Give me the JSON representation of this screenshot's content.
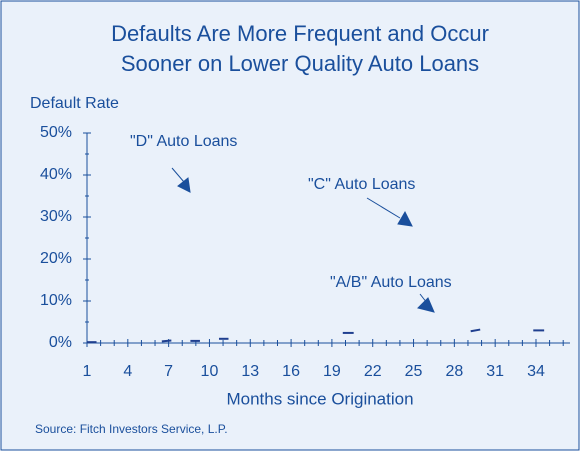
{
  "chart_data": {
    "type": "line",
    "title": [
      "Defaults Are More Frequent and Occur",
      "Sooner on Lower Quality Auto Loans"
    ],
    "y_label": "Default Rate",
    "x_label": "Months since Origination",
    "source": "Source:  Fitch Investors Service, L.P.",
    "annotations": [
      "\"D\" Auto Loans",
      "\"C\" Auto Loans",
      "\"A/B\" Auto Loans"
    ],
    "x": [
      1,
      1.7,
      4,
      6.5,
      7.2,
      8,
      8.6,
      9.3,
      10,
      10.7,
      11.4,
      15,
      19.8,
      20.6,
      25,
      29.2,
      29.9,
      32,
      33.8,
      34.6
    ],
    "series": [
      {
        "color": "#1f3f8f",
        "values": [
          0.2,
          0.2,
          null,
          0.4,
          0.6,
          null,
          0.5,
          0.5,
          null,
          1,
          1,
          null,
          2.4,
          2.4,
          null,
          2.8,
          3.2,
          null,
          3,
          3
        ]
      }
    ],
    "xlim": [
      1,
      36.5
    ],
    "xticks": [
      1,
      4,
      7,
      10,
      13,
      16,
      19,
      22,
      25,
      28,
      31,
      34
    ],
    "xticks_minor": [
      2,
      3,
      5,
      6,
      8,
      9,
      11,
      12,
      14,
      15,
      17,
      18,
      20,
      21,
      23,
      24,
      26,
      27,
      29,
      30,
      32,
      33,
      35,
      36
    ],
    "ylim": [
      0,
      50
    ],
    "yticks": [
      {
        "value": 0,
        "label": "0%"
      },
      {
        "value": 10,
        "label": "10%"
      },
      {
        "value": 20,
        "label": "20%"
      },
      {
        "value": 30,
        "label": "30%"
      },
      {
        "value": 40,
        "label": "40%"
      },
      {
        "value": 50,
        "label": "50%"
      }
    ],
    "yticks_minor": [
      5,
      15,
      25,
      35,
      45
    ],
    "grid": false
  }
}
